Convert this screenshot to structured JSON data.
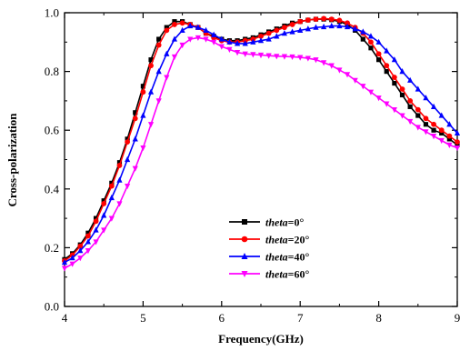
{
  "chart_data": {
    "type": "line",
    "title": "",
    "xlabel": "Frequency(GHz)",
    "ylabel": "Cross-polarization",
    "xlim": [
      4,
      9
    ],
    "ylim": [
      0.0,
      1.0
    ],
    "x_ticks": [
      "4",
      "5",
      "6",
      "7",
      "8",
      "9"
    ],
    "y_ticks": [
      "0.0",
      "0.2",
      "0.4",
      "0.6",
      "0.8",
      "1.0"
    ],
    "grid": false,
    "legend_position": "bottom-center",
    "x": [
      4.0,
      4.1,
      4.2,
      4.3,
      4.4,
      4.5,
      4.6,
      4.7,
      4.8,
      4.9,
      5.0,
      5.1,
      5.2,
      5.3,
      5.4,
      5.5,
      5.6,
      5.7,
      5.8,
      5.9,
      6.0,
      6.1,
      6.2,
      6.3,
      6.4,
      6.5,
      6.6,
      6.7,
      6.8,
      6.9,
      7.0,
      7.1,
      7.2,
      7.3,
      7.4,
      7.5,
      7.6,
      7.7,
      7.8,
      7.9,
      8.0,
      8.1,
      8.2,
      8.3,
      8.4,
      8.5,
      8.6,
      8.7,
      8.8,
      8.9,
      9.0
    ],
    "series": [
      {
        "legend_italic": "theta",
        "legend_rest": "=0°",
        "color": "#000000",
        "marker": "square",
        "values": [
          0.16,
          0.18,
          0.21,
          0.25,
          0.3,
          0.36,
          0.42,
          0.49,
          0.57,
          0.66,
          0.75,
          0.84,
          0.91,
          0.95,
          0.97,
          0.97,
          0.96,
          0.95,
          0.93,
          0.92,
          0.91,
          0.905,
          0.905,
          0.91,
          0.915,
          0.925,
          0.935,
          0.945,
          0.955,
          0.965,
          0.97,
          0.975,
          0.978,
          0.978,
          0.976,
          0.97,
          0.96,
          0.94,
          0.91,
          0.88,
          0.84,
          0.8,
          0.76,
          0.72,
          0.68,
          0.65,
          0.62,
          0.6,
          0.59,
          0.57,
          0.55
        ]
      },
      {
        "legend_italic": "theta",
        "legend_rest": "=20°",
        "color": "#ff0000",
        "marker": "circle",
        "values": [
          0.155,
          0.175,
          0.205,
          0.24,
          0.29,
          0.35,
          0.41,
          0.48,
          0.56,
          0.64,
          0.73,
          0.82,
          0.89,
          0.94,
          0.96,
          0.965,
          0.96,
          0.95,
          0.93,
          0.915,
          0.905,
          0.9,
          0.9,
          0.905,
          0.91,
          0.92,
          0.93,
          0.94,
          0.95,
          0.96,
          0.97,
          0.975,
          0.978,
          0.98,
          0.978,
          0.974,
          0.965,
          0.95,
          0.93,
          0.9,
          0.86,
          0.82,
          0.78,
          0.74,
          0.7,
          0.67,
          0.64,
          0.62,
          0.6,
          0.58,
          0.56
        ]
      },
      {
        "legend_italic": "theta",
        "legend_rest": "=40°",
        "color": "#0000ff",
        "marker": "triangle-up",
        "values": [
          0.15,
          0.165,
          0.19,
          0.22,
          0.26,
          0.31,
          0.37,
          0.43,
          0.5,
          0.57,
          0.65,
          0.73,
          0.8,
          0.86,
          0.91,
          0.94,
          0.955,
          0.95,
          0.94,
          0.925,
          0.91,
          0.9,
          0.895,
          0.895,
          0.9,
          0.905,
          0.91,
          0.92,
          0.93,
          0.935,
          0.94,
          0.945,
          0.95,
          0.952,
          0.955,
          0.955,
          0.952,
          0.945,
          0.935,
          0.92,
          0.9,
          0.87,
          0.84,
          0.8,
          0.77,
          0.74,
          0.71,
          0.68,
          0.65,
          0.62,
          0.59
        ]
      },
      {
        "legend_italic": "theta",
        "legend_rest": "=60°",
        "color": "#ff00ff",
        "marker": "triangle-down",
        "values": [
          0.13,
          0.145,
          0.165,
          0.19,
          0.22,
          0.26,
          0.3,
          0.35,
          0.41,
          0.47,
          0.54,
          0.62,
          0.7,
          0.78,
          0.85,
          0.89,
          0.91,
          0.915,
          0.91,
          0.9,
          0.885,
          0.875,
          0.865,
          0.86,
          0.858,
          0.856,
          0.854,
          0.852,
          0.851,
          0.85,
          0.848,
          0.845,
          0.84,
          0.83,
          0.82,
          0.805,
          0.79,
          0.77,
          0.75,
          0.73,
          0.71,
          0.69,
          0.67,
          0.65,
          0.63,
          0.61,
          0.595,
          0.58,
          0.565,
          0.55,
          0.54
        ]
      }
    ]
  }
}
